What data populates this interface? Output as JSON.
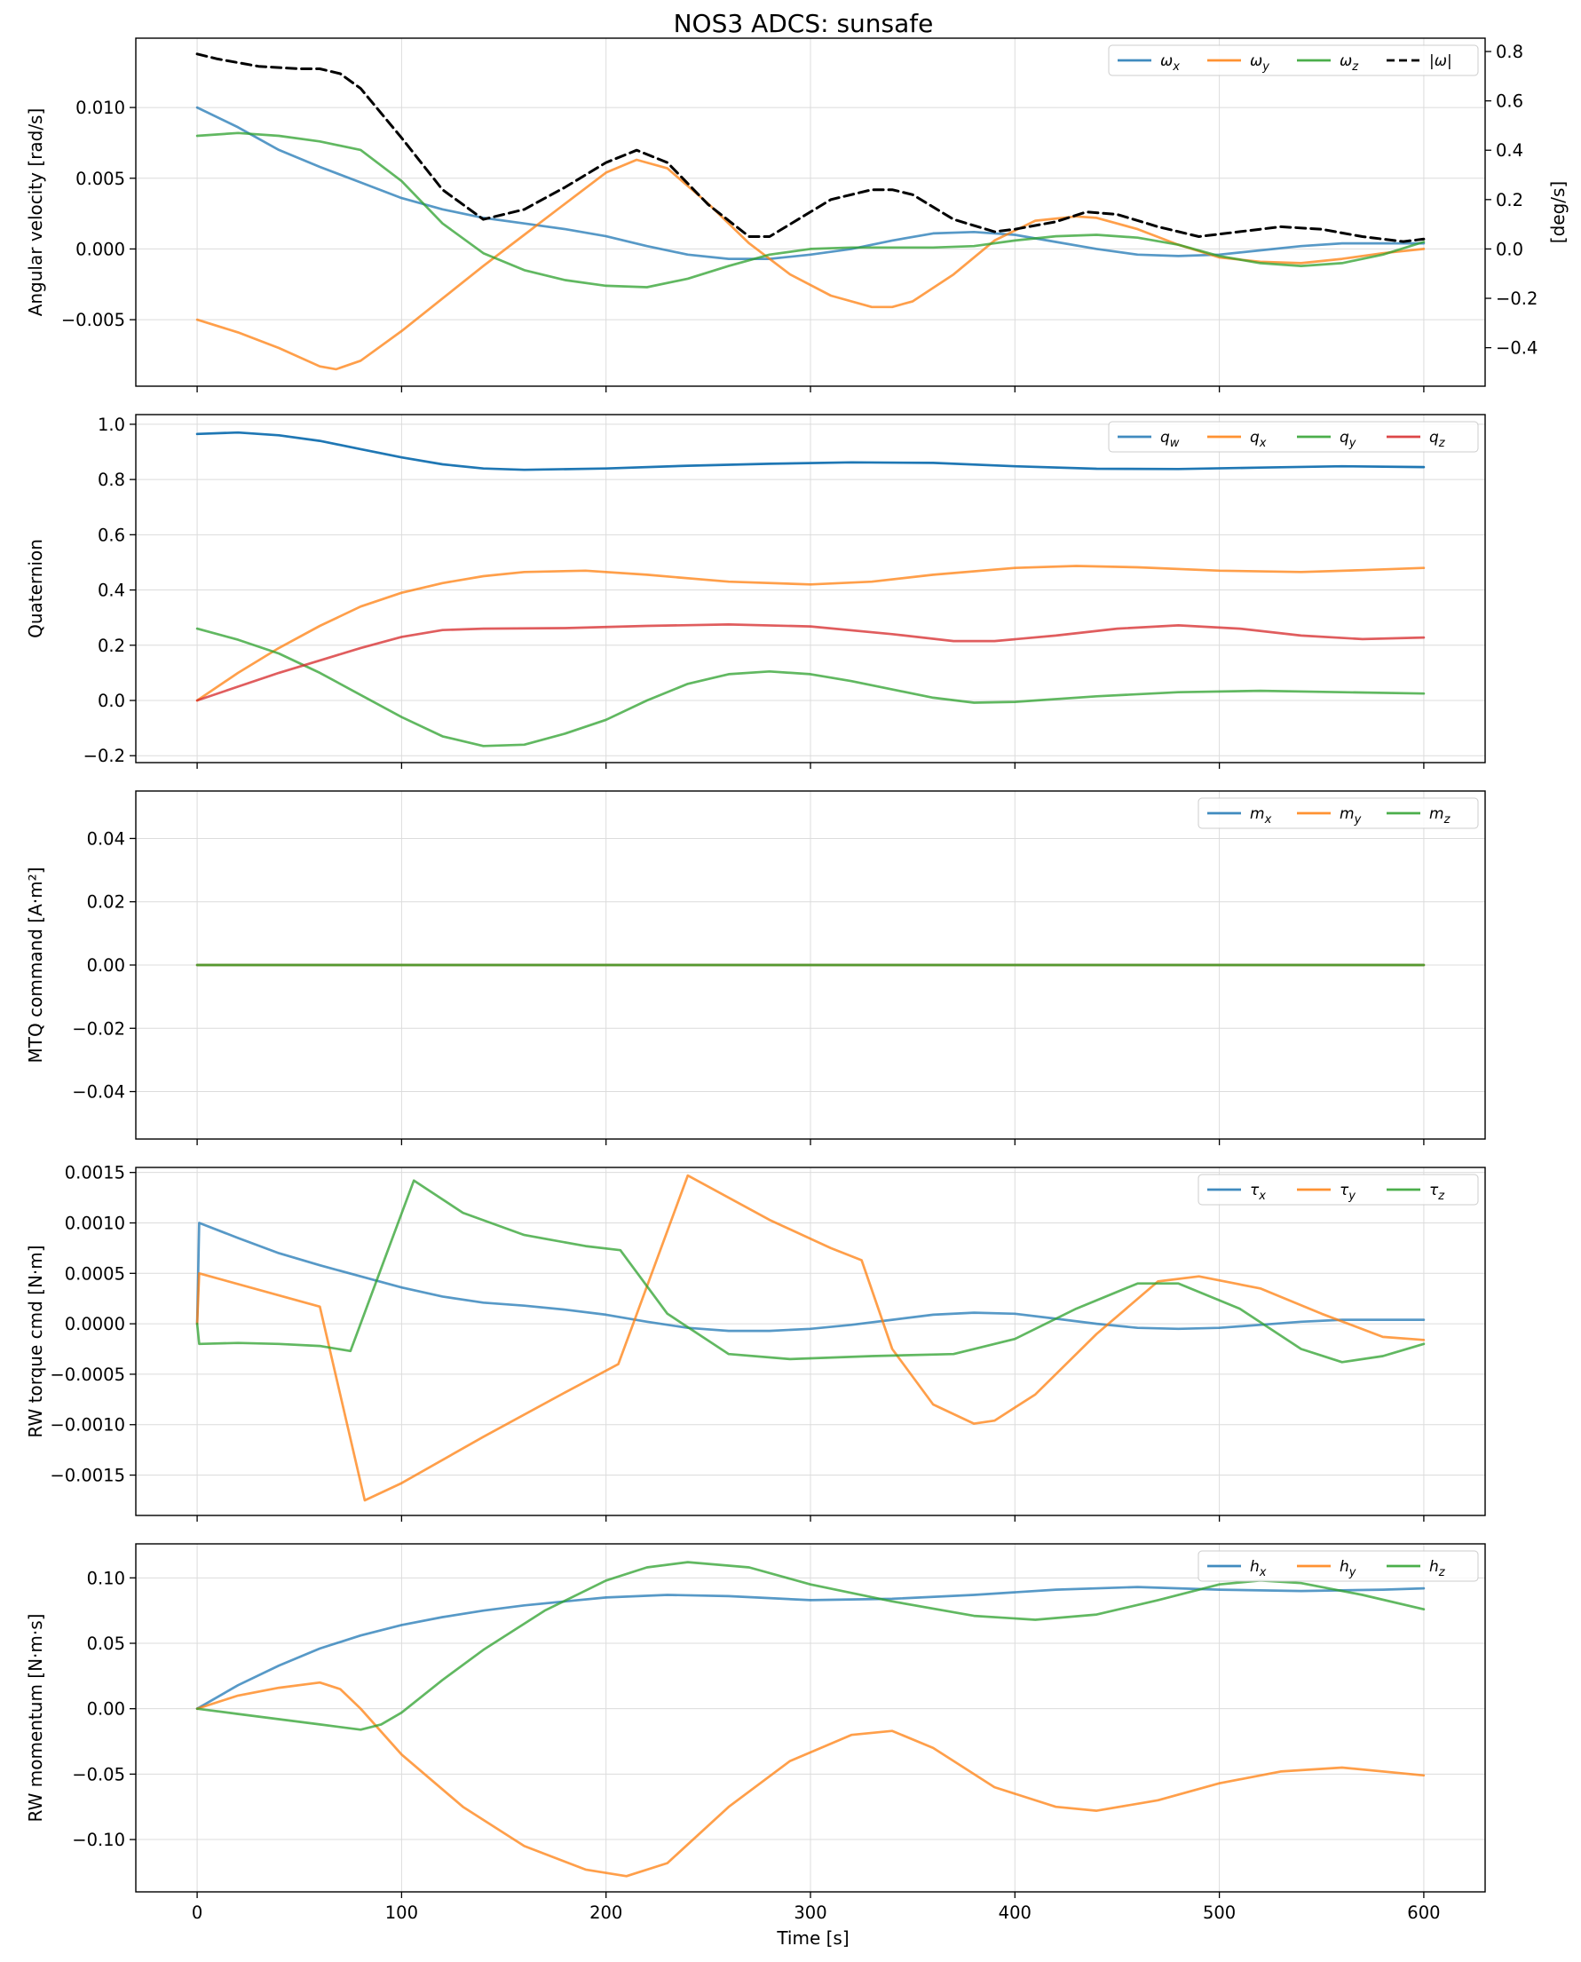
{
  "title": "NOS3 ADCS: sunsafe",
  "xlabel": "Time [s]",
  "xticks": [
    "0",
    "100",
    "200",
    "300",
    "400",
    "500",
    "600"
  ],
  "colors": {
    "blue": "#1f77b4",
    "orange": "#ff7f0e",
    "green": "#2ca02c",
    "red": "#d62728",
    "black": "#000000"
  },
  "chart_data": [
    {
      "type": "line",
      "ylabel": "Angular velocity [rad/s]",
      "ylabel_right": "[deg/s]",
      "xlim": [
        -30,
        630
      ],
      "ylim": [
        -0.0097,
        0.0149
      ],
      "yticks": [
        "−0.005",
        "0.000",
        "0.005",
        "0.010"
      ],
      "yticks_right": [
        "−0.4",
        "−0.2",
        "0.0",
        "0.2",
        "0.4",
        "0.6",
        "0.8"
      ],
      "ylim_right": [
        -0.556,
        0.854
      ],
      "legend": "top-right",
      "grid": true,
      "series": [
        {
          "name": "ωx",
          "sym": "ω",
          "sub": "x",
          "color": "#1f77b4",
          "x": [
            0,
            20,
            40,
            60,
            80,
            100,
            120,
            140,
            160,
            180,
            200,
            220,
            240,
            260,
            280,
            300,
            320,
            340,
            360,
            380,
            400,
            420,
            440,
            460,
            480,
            500,
            520,
            540,
            560,
            580,
            600
          ],
          "y": [
            0.01,
            0.0086,
            0.007,
            0.0058,
            0.0047,
            0.0036,
            0.0028,
            0.0022,
            0.0018,
            0.0014,
            0.0009,
            0.0002,
            -0.0004,
            -0.0007,
            -0.0007,
            -0.0004,
            0.0,
            0.0006,
            0.0011,
            0.0012,
            0.001,
            0.0005,
            0.0,
            -0.0004,
            -0.0005,
            -0.0004,
            -0.0001,
            0.0002,
            0.0004,
            0.0004,
            0.0004
          ]
        },
        {
          "name": "ωy",
          "sym": "ω",
          "sub": "y",
          "color": "#ff7f0e",
          "x": [
            0,
            20,
            40,
            60,
            68,
            80,
            100,
            120,
            140,
            160,
            180,
            200,
            215,
            230,
            250,
            270,
            290,
            310,
            330,
            340,
            350,
            370,
            390,
            410,
            430,
            440,
            460,
            480,
            500,
            520,
            540,
            560,
            580,
            600
          ],
          "y": [
            -0.005,
            -0.0059,
            -0.007,
            -0.0083,
            -0.0085,
            -0.0079,
            -0.0058,
            -0.0035,
            -0.0012,
            0.001,
            0.0032,
            0.0054,
            0.0063,
            0.0057,
            0.0032,
            0.0004,
            -0.0018,
            -0.0033,
            -0.0041,
            -0.0041,
            -0.0037,
            -0.0018,
            0.0006,
            0.002,
            0.0023,
            0.0022,
            0.0014,
            0.0003,
            -0.0006,
            -0.0009,
            -0.001,
            -0.0007,
            -0.0003,
            0.0
          ]
        },
        {
          "name": "ωz",
          "sym": "ω",
          "sub": "z",
          "color": "#2ca02c",
          "x": [
            0,
            20,
            40,
            60,
            80,
            100,
            120,
            140,
            160,
            180,
            200,
            220,
            240,
            260,
            280,
            300,
            320,
            340,
            360,
            380,
            400,
            420,
            440,
            460,
            480,
            500,
            520,
            540,
            560,
            580,
            600
          ],
          "y": [
            0.008,
            0.0082,
            0.008,
            0.0076,
            0.007,
            0.0048,
            0.0018,
            -0.0003,
            -0.0015,
            -0.0022,
            -0.0026,
            -0.0027,
            -0.0021,
            -0.0012,
            -0.0004,
            0.0,
            0.0001,
            0.0001,
            0.0001,
            0.0002,
            0.0006,
            0.0009,
            0.001,
            0.0008,
            0.0003,
            -0.0005,
            -0.001,
            -0.0012,
            -0.001,
            -0.0004,
            0.0005
          ]
        },
        {
          "name": "|ω|",
          "color": "#000000",
          "axis": "right",
          "dashed": true,
          "x": [
            0,
            10,
            30,
            50,
            60,
            70,
            80,
            100,
            120,
            140,
            160,
            180,
            200,
            215,
            230,
            250,
            270,
            280,
            290,
            310,
            330,
            340,
            350,
            370,
            390,
            400,
            420,
            435,
            450,
            470,
            490,
            500,
            520,
            530,
            550,
            570,
            590,
            600
          ],
          "y": [
            0.79,
            0.77,
            0.74,
            0.73,
            0.73,
            0.71,
            0.65,
            0.45,
            0.24,
            0.12,
            0.16,
            0.25,
            0.35,
            0.4,
            0.35,
            0.18,
            0.05,
            0.05,
            0.1,
            0.2,
            0.24,
            0.24,
            0.22,
            0.12,
            0.07,
            0.08,
            0.11,
            0.15,
            0.14,
            0.09,
            0.05,
            0.06,
            0.08,
            0.09,
            0.08,
            0.05,
            0.03,
            0.04
          ]
        }
      ]
    },
    {
      "type": "line",
      "ylabel": "Quaternion",
      "xlim": [
        -30,
        630
      ],
      "ylim": [
        -0.225,
        1.035
      ],
      "yticks": [
        "−0.2",
        "0.0",
        "0.2",
        "0.4",
        "0.6",
        "0.8",
        "1.0"
      ],
      "legend": "top-right",
      "grid": true,
      "series": [
        {
          "name": "qw",
          "sym": "q",
          "sub": "w",
          "color": "#1f77b4",
          "x": [
            0,
            20,
            40,
            60,
            80,
            100,
            120,
            140,
            160,
            200,
            240,
            280,
            320,
            360,
            400,
            440,
            480,
            520,
            560,
            600
          ],
          "y": [
            0.965,
            0.97,
            0.96,
            0.94,
            0.91,
            0.88,
            0.855,
            0.84,
            0.835,
            0.84,
            0.85,
            0.857,
            0.862,
            0.86,
            0.848,
            0.839,
            0.838,
            0.843,
            0.848,
            0.845
          ]
        },
        {
          "name": "qx",
          "sym": "q",
          "sub": "x",
          "color": "#ff7f0e",
          "x": [
            0,
            20,
            40,
            60,
            80,
            100,
            120,
            140,
            160,
            190,
            220,
            260,
            300,
            330,
            360,
            400,
            430,
            460,
            500,
            540,
            570,
            600
          ],
          "y": [
            0.0,
            0.1,
            0.19,
            0.27,
            0.34,
            0.39,
            0.425,
            0.45,
            0.465,
            0.47,
            0.455,
            0.43,
            0.42,
            0.43,
            0.455,
            0.48,
            0.487,
            0.482,
            0.47,
            0.465,
            0.472,
            0.48
          ]
        },
        {
          "name": "qy",
          "sym": "q",
          "sub": "y",
          "color": "#2ca02c",
          "x": [
            0,
            20,
            40,
            60,
            80,
            100,
            120,
            140,
            160,
            180,
            200,
            220,
            240,
            260,
            280,
            300,
            320,
            340,
            360,
            380,
            400,
            440,
            480,
            520,
            560,
            600
          ],
          "y": [
            0.26,
            0.22,
            0.17,
            0.1,
            0.02,
            -0.06,
            -0.13,
            -0.165,
            -0.16,
            -0.12,
            -0.07,
            0.0,
            0.06,
            0.095,
            0.105,
            0.095,
            0.07,
            0.04,
            0.01,
            -0.008,
            -0.005,
            0.015,
            0.03,
            0.035,
            0.03,
            0.025
          ]
        },
        {
          "name": "qz",
          "sym": "q",
          "sub": "z",
          "color": "#d62728",
          "x": [
            0,
            20,
            40,
            60,
            80,
            100,
            120,
            140,
            180,
            220,
            260,
            300,
            340,
            370,
            390,
            420,
            450,
            480,
            510,
            540,
            570,
            600
          ],
          "y": [
            0.0,
            0.05,
            0.1,
            0.145,
            0.19,
            0.23,
            0.255,
            0.26,
            0.262,
            0.27,
            0.275,
            0.268,
            0.24,
            0.215,
            0.215,
            0.235,
            0.26,
            0.272,
            0.26,
            0.235,
            0.222,
            0.228
          ]
        }
      ]
    },
    {
      "type": "line",
      "ylabel": "MTQ command [A·m²]",
      "xlim": [
        -30,
        630
      ],
      "ylim": [
        -0.055,
        0.055
      ],
      "yticks": [
        "−0.04",
        "−0.02",
        "0.00",
        "0.02",
        "0.04"
      ],
      "legend": "top-right",
      "grid": true,
      "series": [
        {
          "name": "mx",
          "sym": "m",
          "sub": "x",
          "color": "#1f77b4",
          "x": [
            0,
            600
          ],
          "y": [
            0,
            0
          ]
        },
        {
          "name": "my",
          "sym": "m",
          "sub": "y",
          "color": "#ff7f0e",
          "x": [
            0,
            600
          ],
          "y": [
            0,
            0
          ]
        },
        {
          "name": "mz",
          "sym": "m",
          "sub": "z",
          "color": "#2ca02c",
          "x": [
            0,
            600
          ],
          "y": [
            0,
            0
          ]
        }
      ]
    },
    {
      "type": "line",
      "ylabel": "RW torque cmd [N·m]",
      "xlim": [
        -30,
        630
      ],
      "ylim": [
        -0.0019,
        0.00155
      ],
      "yticks": [
        "−0.0015",
        "−0.0010",
        "−0.0005",
        "0.0000",
        "0.0005",
        "0.0010",
        "0.0015"
      ],
      "legend": "top-right",
      "grid": true,
      "series": [
        {
          "name": "τx",
          "sym": "τ",
          "sub": "x",
          "color": "#1f77b4",
          "x": [
            0,
            1,
            20,
            40,
            60,
            80,
            100,
            120,
            140,
            160,
            180,
            200,
            220,
            240,
            260,
            280,
            300,
            320,
            340,
            360,
            380,
            400,
            420,
            440,
            460,
            480,
            500,
            520,
            540,
            560,
            580,
            600
          ],
          "y": [
            0.0,
            0.001,
            0.00085,
            0.0007,
            0.00058,
            0.00047,
            0.00036,
            0.00027,
            0.00021,
            0.00018,
            0.00014,
            9e-05,
            2e-05,
            -4e-05,
            -7e-05,
            -7e-05,
            -5e-05,
            -1e-05,
            4e-05,
            9e-05,
            0.00011,
            0.0001,
            5e-05,
            0.0,
            -4e-05,
            -5e-05,
            -4e-05,
            -1e-05,
            2e-05,
            4e-05,
            4e-05,
            4e-05
          ]
        },
        {
          "name": "τy",
          "sym": "τ",
          "sub": "y",
          "color": "#ff7f0e",
          "x": [
            0,
            1,
            60,
            82,
            100,
            140,
            180,
            206,
            240,
            280,
            310,
            325,
            340,
            360,
            380,
            390,
            410,
            440,
            470,
            490,
            520,
            550,
            580,
            600
          ],
          "y": [
            0.0,
            0.0005,
            0.00017,
            -0.00175,
            -0.00158,
            -0.00112,
            -0.00068,
            -0.0004,
            0.00147,
            0.00103,
            0.00075,
            0.00063,
            -0.00025,
            -0.0008,
            -0.00099,
            -0.00096,
            -0.0007,
            -0.0001,
            0.00042,
            0.00047,
            0.00035,
            0.0001,
            -0.00013,
            -0.00016
          ]
        },
        {
          "name": "τz",
          "sym": "τ",
          "sub": "z",
          "color": "#2ca02c",
          "x": [
            0,
            1,
            20,
            40,
            60,
            75,
            90,
            106,
            130,
            160,
            190,
            207,
            230,
            260,
            290,
            330,
            370,
            400,
            430,
            460,
            480,
            510,
            540,
            560,
            580,
            600
          ],
          "y": [
            0.0,
            -0.0002,
            -0.00019,
            -0.0002,
            -0.00022,
            -0.00027,
            0.00055,
            0.00142,
            0.0011,
            0.00088,
            0.00077,
            0.00073,
            0.0001,
            -0.0003,
            -0.00035,
            -0.00032,
            -0.0003,
            -0.00015,
            0.00015,
            0.0004,
            0.0004,
            0.00015,
            -0.00025,
            -0.00038,
            -0.00032,
            -0.0002
          ]
        }
      ]
    },
    {
      "type": "line",
      "ylabel": "RW momentum [N·m·s]",
      "xlim": [
        -30,
        630
      ],
      "ylim": [
        -0.14,
        0.126
      ],
      "yticks": [
        "−0.10",
        "−0.05",
        "0.00",
        "0.05",
        "0.10"
      ],
      "legend": "top-right",
      "grid": true,
      "series": [
        {
          "name": "hx",
          "sym": "h",
          "sub": "x",
          "color": "#1f77b4",
          "x": [
            0,
            20,
            40,
            60,
            80,
            100,
            120,
            140,
            160,
            180,
            200,
            230,
            260,
            300,
            340,
            380,
            420,
            460,
            500,
            540,
            580,
            600
          ],
          "y": [
            0.0,
            0.018,
            0.033,
            0.046,
            0.056,
            0.064,
            0.07,
            0.075,
            0.079,
            0.082,
            0.085,
            0.087,
            0.086,
            0.083,
            0.084,
            0.087,
            0.091,
            0.093,
            0.091,
            0.09,
            0.091,
            0.092
          ]
        },
        {
          "name": "hy",
          "sym": "h",
          "sub": "y",
          "color": "#ff7f0e",
          "x": [
            0,
            20,
            40,
            60,
            70,
            80,
            100,
            130,
            160,
            190,
            210,
            230,
            260,
            290,
            320,
            340,
            360,
            390,
            420,
            440,
            470,
            500,
            530,
            560,
            600
          ],
          "y": [
            0.0,
            0.01,
            0.016,
            0.02,
            0.015,
            0.0,
            -0.035,
            -0.075,
            -0.105,
            -0.123,
            -0.128,
            -0.118,
            -0.075,
            -0.04,
            -0.02,
            -0.017,
            -0.03,
            -0.06,
            -0.075,
            -0.078,
            -0.07,
            -0.057,
            -0.048,
            -0.045,
            -0.051
          ]
        },
        {
          "name": "hz",
          "sym": "h",
          "sub": "z",
          "color": "#2ca02c",
          "x": [
            0,
            20,
            40,
            60,
            80,
            90,
            100,
            120,
            140,
            170,
            200,
            220,
            240,
            270,
            300,
            340,
            380,
            410,
            440,
            470,
            500,
            520,
            540,
            570,
            600
          ],
          "y": [
            0.0,
            -0.004,
            -0.008,
            -0.012,
            -0.016,
            -0.012,
            -0.003,
            0.022,
            0.045,
            0.075,
            0.098,
            0.108,
            0.112,
            0.108,
            0.095,
            0.082,
            0.071,
            0.068,
            0.072,
            0.083,
            0.095,
            0.098,
            0.096,
            0.087,
            0.076
          ]
        }
      ]
    }
  ]
}
